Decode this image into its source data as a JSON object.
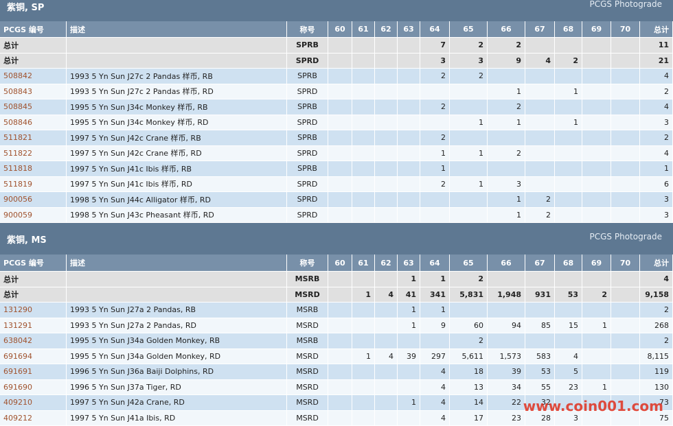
{
  "sections": [
    {
      "title": "紫铜, SP",
      "brand": "PCGS Photograde",
      "header": [
        "PCGS 编号",
        "描述",
        "称号",
        "60",
        "61",
        "62",
        "63",
        "64",
        "65",
        "66",
        "67",
        "68",
        "69",
        "70",
        "总计"
      ],
      "rows": [
        [
          "总计",
          null,
          "SPRB",
          null,
          null,
          null,
          null,
          "7",
          "2",
          "2",
          null,
          null,
          null,
          null,
          "11"
        ],
        [
          "总计",
          null,
          "SPRD",
          null,
          null,
          null,
          null,
          "3",
          "3",
          "9",
          "4",
          "2",
          null,
          null,
          "21"
        ],
        [
          "508842",
          "1993 5 Yn Sun J27c 2 Pandas 样币, RB",
          "SPRB",
          null,
          null,
          null,
          null,
          "2",
          "2",
          null,
          null,
          null,
          null,
          null,
          "4"
        ],
        [
          "508843",
          "1993 5 Yn Sun J27c 2 Pandas 样币, RD",
          "SPRD",
          null,
          null,
          null,
          null,
          null,
          null,
          "1",
          null,
          "1",
          null,
          null,
          "2"
        ],
        [
          "508845",
          "1995 5 Yn Sun J34c Monkey 样币, RB",
          "SPRB",
          null,
          null,
          null,
          null,
          "2",
          null,
          "2",
          null,
          null,
          null,
          null,
          "4"
        ],
        [
          "508846",
          "1995 5 Yn Sun J34c Monkey 样币, RD",
          "SPRD",
          null,
          null,
          null,
          null,
          null,
          "1",
          "1",
          null,
          "1",
          null,
          null,
          "3"
        ],
        [
          "511821",
          "1997 5 Yn Sun J42c Crane 样币, RB",
          "SPRB",
          null,
          null,
          null,
          null,
          "2",
          null,
          null,
          null,
          null,
          null,
          null,
          "2"
        ],
        [
          "511822",
          "1997 5 Yn Sun J42c Crane 样币, RD",
          "SPRD",
          null,
          null,
          null,
          null,
          "1",
          "1",
          "2",
          null,
          null,
          null,
          null,
          "4"
        ],
        [
          "511818",
          "1997 5 Yn Sun J41c Ibis 样币, RB",
          "SPRB",
          null,
          null,
          null,
          null,
          "1",
          null,
          null,
          null,
          null,
          null,
          null,
          "1"
        ],
        [
          "511819",
          "1997 5 Yn Sun J41c Ibis 样币, RD",
          "SPRD",
          null,
          null,
          null,
          null,
          "2",
          "1",
          "3",
          null,
          null,
          null,
          null,
          "6"
        ],
        [
          "900056",
          "1998 5 Yn Sun J44c Alligator 样币, RD",
          "SPRD",
          null,
          null,
          null,
          null,
          null,
          null,
          "1",
          "2",
          null,
          null,
          null,
          "3"
        ],
        [
          "900059",
          "1998 5 Yn Sun J43c Pheasant 样币, RD",
          "SPRD",
          null,
          null,
          null,
          null,
          null,
          null,
          "1",
          "2",
          null,
          null,
          null,
          "3"
        ]
      ]
    },
    {
      "title": "紫铜, MS",
      "brand": "PCGS Photograde",
      "header": [
        "PCGS 编号",
        "描述",
        "称号",
        "60",
        "61",
        "62",
        "63",
        "64",
        "65",
        "66",
        "67",
        "68",
        "69",
        "70",
        "总计"
      ],
      "rows": [
        [
          "总计",
          null,
          "MSRB",
          null,
          null,
          null,
          "1",
          "1",
          "2",
          null,
          null,
          null,
          null,
          null,
          "4"
        ],
        [
          "总计",
          null,
          "MSRD",
          null,
          "1",
          "4",
          "41",
          "341",
          "5,831",
          "1,948",
          "931",
          "53",
          "2",
          null,
          "9,158"
        ],
        [
          "131290",
          "1993 5 Yn Sun J27a 2 Pandas, RB",
          "MSRB",
          null,
          null,
          null,
          "1",
          "1",
          null,
          null,
          null,
          null,
          null,
          null,
          "2"
        ],
        [
          "131291",
          "1993 5 Yn Sun J27a 2 Pandas, RD",
          "MSRD",
          null,
          null,
          null,
          "1",
          "9",
          "60",
          "94",
          "85",
          "15",
          "1",
          null,
          "268"
        ],
        [
          "638042",
          "1995 5 Yn Sun J34a Golden Monkey, RB",
          "MSRB",
          null,
          null,
          null,
          null,
          null,
          "2",
          null,
          null,
          null,
          null,
          null,
          "2"
        ],
        [
          "691694",
          "1995 5 Yn Sun J34a Golden Monkey, RD",
          "MSRD",
          null,
          "1",
          "4",
          "39",
          "297",
          "5,611",
          "1,573",
          "583",
          "4",
          null,
          null,
          "8,115"
        ],
        [
          "691691",
          "1996 5 Yn Sun J36a Baiji Dolphins, RD",
          "MSRD",
          null,
          null,
          null,
          null,
          "4",
          "18",
          "39",
          "53",
          "5",
          null,
          null,
          "119"
        ],
        [
          "691690",
          "1996 5 Yn Sun J37a Tiger, RD",
          "MSRD",
          null,
          null,
          null,
          null,
          "4",
          "13",
          "34",
          "55",
          "23",
          "1",
          null,
          "130"
        ],
        [
          "409210",
          "1997 5 Yn Sun J42a Crane, RD",
          "MSRD",
          null,
          null,
          null,
          "1",
          "4",
          "14",
          "22",
          "32",
          null,
          null,
          null,
          "73"
        ],
        [
          "409212",
          "1997 5 Yn Sun J41a Ibis, RD",
          "MSRD",
          null,
          null,
          null,
          null,
          "4",
          "17",
          "23",
          "28",
          "3",
          null,
          null,
          "75"
        ]
      ]
    }
  ],
  "watermark": "www.coin001.com"
}
